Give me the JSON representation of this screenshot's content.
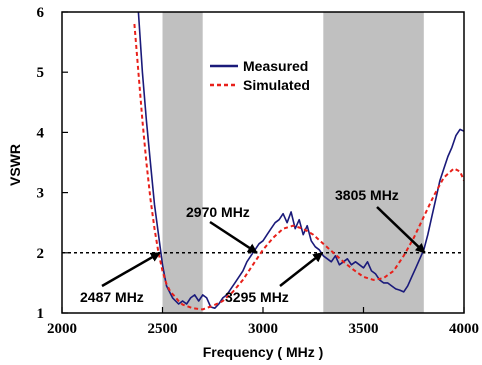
{
  "chart_data": {
    "type": "line",
    "title": "",
    "xlabel": "Frequency ( MHz )",
    "ylabel": "VSWR",
    "xlim": [
      2000,
      4000
    ],
    "ylim": [
      1,
      6
    ],
    "xticks": [
      "2000",
      "2500",
      "3000",
      "3500",
      "4000"
    ],
    "yticks": [
      "1",
      "2",
      "3",
      "4",
      "5",
      "6"
    ],
    "grid": false,
    "legend_position": "top-center",
    "reference_line": {
      "y": 2,
      "style": "dotted",
      "color": "#000000"
    },
    "shaded_bands": [
      {
        "x0": 2500,
        "x1": 2700,
        "color": "#c0c0c0"
      },
      {
        "x0": 3300,
        "x1": 3800,
        "color": "#c0c0c0"
      }
    ],
    "series": [
      {
        "name": "Measured",
        "color": "#1a1a7a",
        "style": "solid",
        "x": [
          2380,
          2400,
          2420,
          2440,
          2460,
          2480,
          2500,
          2520,
          2550,
          2580,
          2600,
          2620,
          2640,
          2660,
          2680,
          2700,
          2720,
          2740,
          2760,
          2780,
          2800,
          2820,
          2840,
          2860,
          2880,
          2900,
          2920,
          2940,
          2960,
          2980,
          3000,
          3020,
          3040,
          3060,
          3080,
          3100,
          3120,
          3140,
          3160,
          3180,
          3200,
          3220,
          3240,
          3260,
          3280,
          3300,
          3320,
          3340,
          3360,
          3380,
          3400,
          3420,
          3440,
          3460,
          3480,
          3500,
          3520,
          3540,
          3560,
          3580,
          3600,
          3620,
          3640,
          3660,
          3680,
          3700,
          3720,
          3740,
          3760,
          3780,
          3800,
          3820,
          3840,
          3860,
          3880,
          3900,
          3920,
          3940,
          3960,
          3980,
          4000
        ],
        "y": [
          6.0,
          5.0,
          4.2,
          3.5,
          2.8,
          2.3,
          1.8,
          1.45,
          1.25,
          1.15,
          1.2,
          1.15,
          1.25,
          1.3,
          1.2,
          1.3,
          1.25,
          1.1,
          1.08,
          1.15,
          1.25,
          1.3,
          1.4,
          1.5,
          1.6,
          1.7,
          1.85,
          1.95,
          2.05,
          2.15,
          2.2,
          2.3,
          2.4,
          2.5,
          2.55,
          2.65,
          2.5,
          2.68,
          2.4,
          2.55,
          2.3,
          2.45,
          2.2,
          2.1,
          2.05,
          1.95,
          1.9,
          1.85,
          1.95,
          1.8,
          1.85,
          1.9,
          1.8,
          1.85,
          1.8,
          1.75,
          1.85,
          1.7,
          1.65,
          1.55,
          1.5,
          1.5,
          1.45,
          1.4,
          1.38,
          1.35,
          1.45,
          1.6,
          1.75,
          1.9,
          2.05,
          2.3,
          2.6,
          2.9,
          3.2,
          3.4,
          3.6,
          3.75,
          3.95,
          4.05,
          4.02
        ]
      },
      {
        "name": "Simulated",
        "color": "#e8201a",
        "style": "dashed",
        "x": [
          2360,
          2380,
          2400,
          2420,
          2440,
          2460,
          2480,
          2500,
          2520,
          2540,
          2560,
          2580,
          2600,
          2650,
          2700,
          2750,
          2800,
          2850,
          2900,
          2950,
          3000,
          3050,
          3100,
          3150,
          3200,
          3250,
          3300,
          3350,
          3400,
          3450,
          3500,
          3550,
          3600,
          3650,
          3700,
          3750,
          3800,
          3850,
          3900,
          3950,
          3980,
          4000
        ],
        "y": [
          5.8,
          5.0,
          4.2,
          3.5,
          2.9,
          2.4,
          2.0,
          1.7,
          1.48,
          1.35,
          1.28,
          1.2,
          1.14,
          1.08,
          1.06,
          1.12,
          1.2,
          1.35,
          1.55,
          1.8,
          2.05,
          2.25,
          2.4,
          2.45,
          2.4,
          2.3,
          2.15,
          2.0,
          1.85,
          1.72,
          1.6,
          1.55,
          1.58,
          1.7,
          1.95,
          2.25,
          2.6,
          2.95,
          3.25,
          3.4,
          3.35,
          3.2
        ]
      }
    ],
    "annotations": [
      {
        "text": "2487 MHz",
        "x": 2487,
        "y": 2.0
      },
      {
        "text": "2970 MHz",
        "x": 2970,
        "y": 2.0
      },
      {
        "text": "3295 MHz",
        "x": 3295,
        "y": 2.0
      },
      {
        "text": "3805 MHz",
        "x": 3805,
        "y": 2.0
      }
    ]
  }
}
